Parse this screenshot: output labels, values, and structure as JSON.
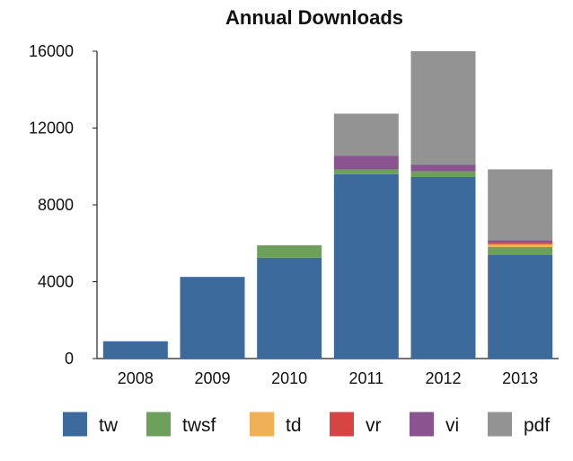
{
  "chart_data": {
    "type": "bar",
    "stacked": true,
    "title": "Annual Downloads",
    "xlabel": "",
    "ylabel": "",
    "categories": [
      "2008",
      "2009",
      "2010",
      "2011",
      "2012",
      "2013"
    ],
    "ylim": [
      0,
      16000
    ],
    "yticks": [
      "0",
      "4000",
      "8000",
      "12000",
      "16000"
    ],
    "grid": false,
    "legend_position": "bottom",
    "series": [
      {
        "name": "tw",
        "color": "#3c6a9c",
        "values": [
          900,
          4250,
          5250,
          9600,
          9450,
          5400
        ]
      },
      {
        "name": "twsf",
        "color": "#6da05a",
        "values": [
          0,
          0,
          650,
          250,
          300,
          400
        ]
      },
      {
        "name": "td",
        "color": "#f0b056",
        "values": [
          0,
          0,
          0,
          0,
          0,
          150
        ]
      },
      {
        "name": "vr",
        "color": "#d64444",
        "values": [
          0,
          0,
          0,
          0,
          0,
          80
        ]
      },
      {
        "name": "vi",
        "color": "#8a5490",
        "values": [
          0,
          0,
          0,
          700,
          350,
          120
        ]
      },
      {
        "name": "pdf",
        "color": "#939393",
        "values": [
          0,
          0,
          0,
          2200,
          5900,
          3700
        ]
      }
    ]
  }
}
